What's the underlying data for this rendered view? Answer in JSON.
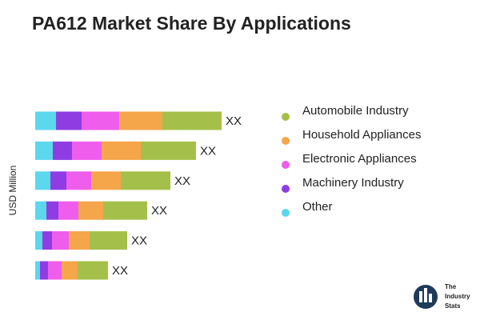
{
  "chart_data": {
    "type": "stacked-bar-horizontal",
    "title": "PA612 Market Share By Applications",
    "y_label": "USD Million",
    "series": [
      {
        "name": "Automobile Industry",
        "color": "#a4c04a",
        "values": [
          74,
          69,
          62,
          55,
          47,
          38
        ]
      },
      {
        "name": "Household Appliances",
        "color": "#f5a54a",
        "values": [
          54,
          49,
          37,
          31,
          26,
          20
        ]
      },
      {
        "name": "Electronic Appliances",
        "color": "#ef5ded",
        "values": [
          47,
          37,
          31,
          25,
          21,
          17
        ]
      },
      {
        "name": "Machinery Industry",
        "color": "#8f3de3",
        "values": [
          32,
          24,
          20,
          15,
          12,
          10
        ]
      },
      {
        "name": "Other",
        "color": "#5bd7ee",
        "values": [
          26,
          22,
          19,
          14,
          9,
          6
        ]
      }
    ],
    "bar_labels": [
      "XX",
      "XX",
      "XX",
      "XX",
      "XX",
      "XX"
    ],
    "logo": [
      "The",
      "Industry",
      "Stats"
    ]
  }
}
